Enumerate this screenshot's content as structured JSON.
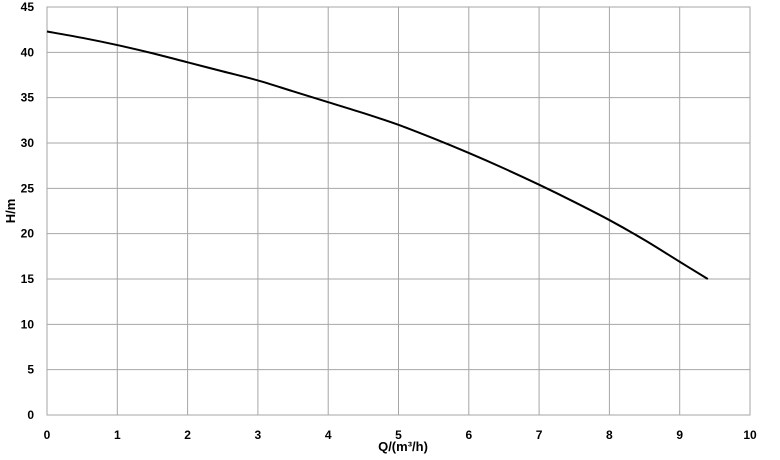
{
  "chart_data": {
    "type": "line",
    "title": "",
    "xlabel": "Q/(m³/h)",
    "ylabel": "H/m",
    "xlim": [
      0,
      10
    ],
    "ylim": [
      0,
      45
    ],
    "x_ticks": [
      0,
      1,
      2,
      3,
      4,
      5,
      6,
      7,
      8,
      9,
      10
    ],
    "y_ticks": [
      0,
      5,
      10,
      15,
      20,
      25,
      30,
      35,
      40,
      45
    ],
    "grid": true,
    "legend": "none",
    "series": [
      {
        "color": "#000000",
        "x": [
          0,
          0.5,
          1,
          1.5,
          2,
          2.5,
          3,
          3.5,
          4,
          4.5,
          5,
          5.5,
          6,
          6.5,
          7,
          7.5,
          8,
          8.5,
          9,
          9.4
        ],
        "y": [
          42.3,
          41.6,
          40.8,
          39.9,
          38.9,
          37.9,
          36.9,
          35.7,
          34.5,
          33.3,
          32.0,
          30.5,
          28.9,
          27.2,
          25.4,
          23.5,
          21.5,
          19.3,
          16.9,
          15.0
        ]
      }
    ]
  }
}
